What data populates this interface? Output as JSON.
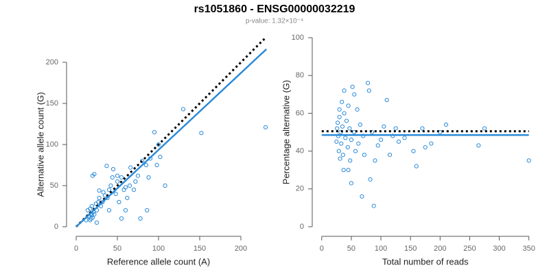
{
  "title": "rs1051860 - ENSG00000032219",
  "subtitle": "p-value: 1.32×10⁻⁴",
  "chart_data": [
    {
      "type": "scatter",
      "x_label": "Reference allele count (A)",
      "y_label": "Alternative allele count (G)",
      "color": "#2b8ad8",
      "x": [
        18,
        16,
        19,
        17,
        20,
        15,
        18,
        21,
        14,
        17,
        19,
        22,
        25,
        24,
        27,
        30,
        28,
        32,
        35,
        33,
        38,
        40,
        37,
        45,
        42,
        48,
        50,
        52,
        55,
        58,
        60,
        55,
        62,
        65,
        66,
        70,
        72,
        75,
        78,
        80,
        85,
        88,
        90,
        95,
        98,
        100,
        102,
        108,
        130,
        152,
        230,
        20,
        22,
        25,
        12,
        28,
        44,
        60,
        86,
        50,
        40
      ],
      "y": [
        10,
        12,
        14,
        8,
        11,
        13,
        16,
        18,
        20,
        22,
        25,
        15,
        20,
        28,
        30,
        25,
        35,
        30,
        38,
        42,
        35,
        45,
        74,
        70,
        50,
        40,
        55,
        30,
        60,
        45,
        48,
        10,
        35,
        50,
        72,
        45,
        55,
        62,
        10,
        80,
        75,
        60,
        83,
        115,
        75,
        100,
        85,
        50,
        143,
        114,
        121,
        62,
        64,
        5,
        8,
        44,
        60,
        20,
        20,
        62,
        20
      ],
      "xlim": [
        -2.5,
        232.5
      ],
      "ylim": [
        -5,
        230
      ],
      "xticks": [
        0,
        50,
        100,
        150,
        200
      ],
      "yticks": [
        0,
        50,
        100,
        150,
        200
      ],
      "ref_lines": [
        {
          "x": [
            0,
            229
          ],
          "y": [
            0,
            229
          ],
          "color": "#000000",
          "dash": "3,4",
          "width": 3
        },
        {
          "x": [
            0,
            231
          ],
          "y": [
            0,
            216
          ],
          "color": "#2b8ad8",
          "dash": "none",
          "width": 2.5
        }
      ]
    },
    {
      "type": "scatter",
      "x_label": "Total number of reads",
      "y_label": "Percentage alternative (G)",
      "color": "#2b8ad8",
      "x": [
        25,
        26,
        27,
        28,
        29,
        30,
        30,
        31,
        32,
        33,
        34,
        35,
        36,
        37,
        38,
        38,
        40,
        42,
        44,
        45,
        47,
        48,
        50,
        50,
        52,
        55,
        57,
        60,
        62,
        65,
        68,
        70,
        72,
        78,
        80,
        82,
        85,
        88,
        90,
        95,
        100,
        105,
        110,
        115,
        120,
        125,
        130,
        140,
        155,
        160,
        170,
        175,
        185,
        200,
        210,
        265,
        275,
        350,
        55,
        45
      ],
      "y": [
        45,
        52,
        55,
        48,
        40,
        58,
        62,
        36,
        50,
        44,
        66,
        53,
        38,
        30,
        60,
        72,
        47,
        56,
        42,
        64,
        52,
        35,
        23,
        46,
        74,
        50,
        40,
        62,
        44,
        54,
        16,
        48,
        38,
        76,
        72,
        25,
        50,
        11,
        35,
        43,
        46,
        53,
        67,
        38,
        48,
        52,
        45,
        47,
        40,
        32,
        52,
        42,
        44,
        50,
        54,
        43,
        52,
        35,
        70,
        30
      ],
      "xlim": [
        -16,
        355
      ],
      "ylim": [
        -4,
        100
      ],
      "xticks": [
        0,
        50,
        100,
        150,
        200,
        250,
        300,
        350
      ],
      "yticks": [
        0,
        20,
        40,
        60,
        80,
        100
      ],
      "ref_lines": [
        {
          "x": [
            0,
            350
          ],
          "y": [
            50.5,
            50.5
          ],
          "color": "#000000",
          "dash": "3,4",
          "width": 3
        },
        {
          "x": [
            0,
            350
          ],
          "y": [
            48.5,
            48.5
          ],
          "color": "#2b8ad8",
          "dash": "none",
          "width": 2.5
        }
      ]
    }
  ]
}
